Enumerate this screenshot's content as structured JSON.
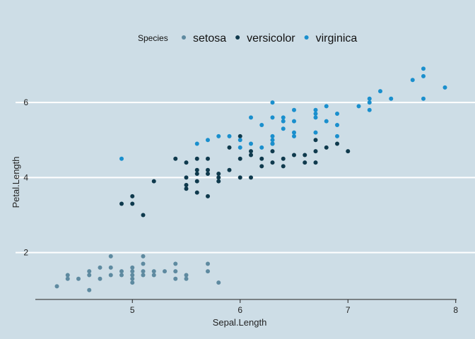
{
  "chart_data": {
    "type": "scatter",
    "xlabel": "Sepal.Length",
    "ylabel": "Petal.Length",
    "xlim": [
      4.1,
      8.1
    ],
    "ylim": [
      0.75,
      7.15
    ],
    "xticks": [
      5,
      6,
      7,
      8
    ],
    "yticks": [
      2,
      4,
      6
    ],
    "grid": "horizontal major",
    "legend": {
      "title": "Species",
      "placement": "top"
    },
    "colors": {
      "background": "#cddde6",
      "gridline": "#ffffff",
      "axis": "#222222"
    },
    "series": [
      {
        "name": "setosa",
        "color": "#5e8aa0",
        "points": [
          [
            4.3,
            1.1
          ],
          [
            4.4,
            1.3
          ],
          [
            4.4,
            1.4
          ],
          [
            4.5,
            1.3
          ],
          [
            4.6,
            1.0
          ],
          [
            4.6,
            1.4
          ],
          [
            4.6,
            1.5
          ],
          [
            4.7,
            1.3
          ],
          [
            4.7,
            1.6
          ],
          [
            4.8,
            1.4
          ],
          [
            4.8,
            1.6
          ],
          [
            4.8,
            1.9
          ],
          [
            4.9,
            1.4
          ],
          [
            4.9,
            1.5
          ],
          [
            5.0,
            1.2
          ],
          [
            5.0,
            1.3
          ],
          [
            5.0,
            1.4
          ],
          [
            5.0,
            1.5
          ],
          [
            5.0,
            1.6
          ],
          [
            5.1,
            1.4
          ],
          [
            5.1,
            1.5
          ],
          [
            5.1,
            1.7
          ],
          [
            5.1,
            1.9
          ],
          [
            5.2,
            1.4
          ],
          [
            5.2,
            1.5
          ],
          [
            5.3,
            1.5
          ],
          [
            5.4,
            1.3
          ],
          [
            5.4,
            1.5
          ],
          [
            5.4,
            1.7
          ],
          [
            5.5,
            1.3
          ],
          [
            5.5,
            1.4
          ],
          [
            5.7,
            1.5
          ],
          [
            5.7,
            1.7
          ],
          [
            5.8,
            1.2
          ]
        ]
      },
      {
        "name": "versicolor",
        "color": "#0f3a4d",
        "points": [
          [
            4.9,
            3.3
          ],
          [
            5.0,
            3.3
          ],
          [
            5.0,
            3.5
          ],
          [
            5.1,
            3.0
          ],
          [
            5.2,
            3.9
          ],
          [
            5.4,
            4.5
          ],
          [
            5.5,
            3.7
          ],
          [
            5.5,
            3.8
          ],
          [
            5.5,
            4.0
          ],
          [
            5.5,
            4.4
          ],
          [
            5.6,
            3.6
          ],
          [
            5.6,
            3.9
          ],
          [
            5.6,
            4.1
          ],
          [
            5.6,
            4.2
          ],
          [
            5.6,
            4.5
          ],
          [
            5.7,
            3.5
          ],
          [
            5.7,
            4.1
          ],
          [
            5.7,
            4.2
          ],
          [
            5.7,
            4.5
          ],
          [
            5.8,
            3.9
          ],
          [
            5.8,
            4.0
          ],
          [
            5.8,
            4.1
          ],
          [
            5.9,
            4.2
          ],
          [
            5.9,
            4.8
          ],
          [
            6.0,
            4.0
          ],
          [
            6.0,
            4.5
          ],
          [
            6.0,
            5.1
          ],
          [
            6.1,
            4.0
          ],
          [
            6.1,
            4.6
          ],
          [
            6.1,
            4.7
          ],
          [
            6.2,
            4.3
          ],
          [
            6.2,
            4.5
          ],
          [
            6.3,
            4.4
          ],
          [
            6.3,
            4.7
          ],
          [
            6.3,
            4.9
          ],
          [
            6.4,
            4.3
          ],
          [
            6.4,
            4.5
          ],
          [
            6.5,
            4.6
          ],
          [
            6.6,
            4.4
          ],
          [
            6.6,
            4.6
          ],
          [
            6.7,
            4.4
          ],
          [
            6.7,
            4.7
          ],
          [
            6.7,
            5.0
          ],
          [
            6.8,
            4.8
          ],
          [
            6.9,
            4.9
          ],
          [
            7.0,
            4.7
          ]
        ]
      },
      {
        "name": "virginica",
        "color": "#1a8fcd",
        "points": [
          [
            4.9,
            4.5
          ],
          [
            5.6,
            4.9
          ],
          [
            5.7,
            5.0
          ],
          [
            5.8,
            5.1
          ],
          [
            5.9,
            5.1
          ],
          [
            6.0,
            4.8
          ],
          [
            6.0,
            5.0
          ],
          [
            6.1,
            4.9
          ],
          [
            6.1,
            5.6
          ],
          [
            6.2,
            4.8
          ],
          [
            6.2,
            5.4
          ],
          [
            6.3,
            4.9
          ],
          [
            6.3,
            5.0
          ],
          [
            6.3,
            5.1
          ],
          [
            6.3,
            5.6
          ],
          [
            6.3,
            6.0
          ],
          [
            6.4,
            5.3
          ],
          [
            6.4,
            5.5
          ],
          [
            6.4,
            5.6
          ],
          [
            6.5,
            5.1
          ],
          [
            6.5,
            5.2
          ],
          [
            6.5,
            5.5
          ],
          [
            6.5,
            5.8
          ],
          [
            6.7,
            5.2
          ],
          [
            6.7,
            5.6
          ],
          [
            6.7,
            5.7
          ],
          [
            6.7,
            5.8
          ],
          [
            6.8,
            5.5
          ],
          [
            6.8,
            5.9
          ],
          [
            6.9,
            5.1
          ],
          [
            6.9,
            5.4
          ],
          [
            6.9,
            5.7
          ],
          [
            7.1,
            5.9
          ],
          [
            7.2,
            5.8
          ],
          [
            7.2,
            6.0
          ],
          [
            7.2,
            6.1
          ],
          [
            7.3,
            6.3
          ],
          [
            7.4,
            6.1
          ],
          [
            7.6,
            6.6
          ],
          [
            7.7,
            6.1
          ],
          [
            7.7,
            6.7
          ],
          [
            7.7,
            6.9
          ],
          [
            7.9,
            6.4
          ]
        ]
      }
    ]
  }
}
